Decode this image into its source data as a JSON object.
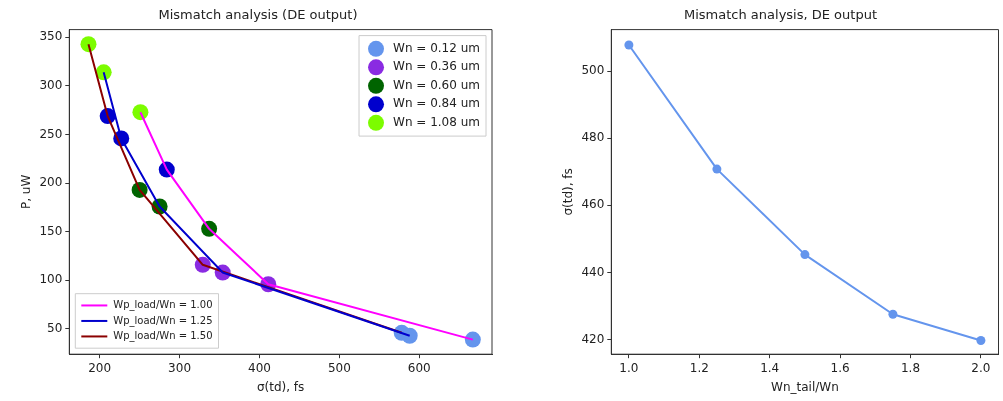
{
  "chart_data": [
    {
      "type": "scatter",
      "title": "Mismatch analysis (DE output)",
      "xlabel": "σ(td), fs",
      "ylabel": "P, uW",
      "xlim": [
        162,
        691
      ],
      "ylim": [
        24,
        358
      ],
      "xticks": [
        200,
        300,
        400,
        500,
        600
      ],
      "yticks": [
        50,
        100,
        150,
        200,
        250,
        300,
        350
      ],
      "legend": "top right",
      "marker": "circle",
      "series": [
        {
          "name": "Wn = 0.12 um",
          "color": "#6495ed",
          "x": [
            578,
            588,
            667
          ],
          "values": [
            46,
            43,
            39
          ]
        },
        {
          "name": "Wn = 0.36 um",
          "color": "#8a2be2",
          "x": [
            329,
            354,
            411
          ],
          "values": [
            116,
            108,
            96
          ]
        },
        {
          "name": "Wn = 0.60 um",
          "color": "#006400",
          "x": [
            250,
            275,
            337
          ],
          "values": [
            193,
            176,
            153
          ]
        },
        {
          "name": "Wn = 0.84 um",
          "color": "#0000cd",
          "x": [
            210,
            227,
            284
          ],
          "values": [
            269,
            246,
            214
          ]
        },
        {
          "name": "Wn = 1.08 um",
          "color": "#7cfc00",
          "x": [
            186,
            205,
            251
          ],
          "values": [
            343,
            314,
            273
          ]
        },
        {
          "name": "Wp_load/Wn = 1.00",
          "type": "line",
          "marker": "none",
          "color": "#ff00ff",
          "x": [
            251,
            284,
            337,
            411,
            667
          ],
          "values": [
            273,
            214,
            153,
            96,
            39
          ]
        },
        {
          "name": "Wp_load/Wn = 1.25",
          "type": "line",
          "marker": "none",
          "color": "#0000cd",
          "x": [
            205,
            227,
            275,
            354,
            588
          ],
          "values": [
            314,
            246,
            176,
            108,
            43
          ]
        },
        {
          "name": "Wp_load/Wn = 1.50",
          "type": "line",
          "marker": "none",
          "color": "#8b0000",
          "x": [
            186,
            210,
            250,
            329,
            578
          ],
          "values": [
            343,
            269,
            193,
            116,
            46
          ]
        }
      ]
    },
    {
      "type": "line",
      "title": "Mismatch analysis, DE output",
      "xlabel": "Wn_tail/Wn",
      "ylabel": "σ(td), fs",
      "xlim": [
        0.95,
        2.05
      ],
      "ylim": [
        415.6,
        512.4
      ],
      "xticks": [
        {
          "value": 1,
          "label": "1.0"
        },
        1.2,
        1.4,
        1.6,
        1.8,
        {
          "value": 2,
          "label": "2.0"
        }
      ],
      "yticks": [
        420,
        440,
        460,
        480,
        500
      ],
      "legend": false,
      "marker": "circle",
      "series": [
        {
          "color": "#6495ed",
          "x": [
            1.0,
            1.25,
            1.5,
            1.75,
            2.0
          ],
          "values": [
            507.8,
            470.8,
            445.3,
            427.5,
            419.7
          ]
        }
      ]
    }
  ]
}
